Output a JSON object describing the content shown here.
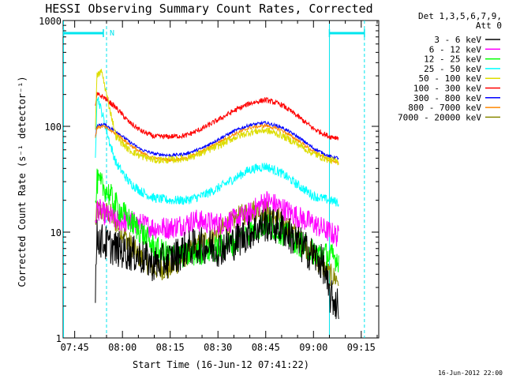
{
  "chart_data": {
    "type": "line",
    "title": "HESSI Observing Summary Count Rates, Corrected",
    "xlabel": "Start Time (16-Jun-12 07:41:22)",
    "ylabel": "Corrected Count Rate (s⁻¹ detector⁻¹)",
    "timestamp": "16-Jun-2012 22:00",
    "x_scale": "time",
    "x_range": [
      "07:41:22",
      "09:20:30"
    ],
    "x_ticks": [
      "07:45",
      "08:00",
      "08:15",
      "08:30",
      "08:45",
      "09:00",
      "09:15"
    ],
    "y_scale": "log",
    "y_range": [
      1,
      1000
    ],
    "y_ticks": [
      "1",
      "10",
      "100",
      "1000"
    ],
    "legend": {
      "position": "top-right",
      "header": [
        "Det 1,3,5,6,7,9,",
        "Att 0"
      ]
    },
    "annotations": {
      "flag_label": "N",
      "flag_bars": [
        {
          "from": "07:41:30",
          "to": "07:54:00"
        },
        {
          "from": "09:05:00",
          "to": "09:16:00"
        }
      ],
      "night_lines_solid": [
        "07:41:30",
        "09:05:00"
      ],
      "night_lines_dashed": [
        "07:55:00",
        "09:16:00"
      ]
    },
    "series": [
      {
        "name": "3 - 6 keV",
        "color": "#000000",
        "noise": 0.35,
        "x": [
          "07:51:30",
          "07:52:00",
          "07:54:00",
          "07:58:00",
          "08:05:00",
          "08:10:00",
          "08:15:00",
          "08:20:00",
          "08:25:00",
          "08:30:00",
          "08:35:00",
          "08:40:00",
          "08:45:00",
          "08:50:00",
          "08:55:00",
          "09:00:00",
          "09:03:00",
          "09:05:00",
          "09:08:00"
        ],
        "y": [
          3,
          9,
          8,
          7,
          6,
          5,
          5.5,
          7,
          7.5,
          7,
          8,
          10,
          12,
          11,
          8,
          6,
          5,
          2.5,
          2
        ]
      },
      {
        "name": "6 - 12 keV",
        "color": "#ff00ff",
        "noise": 0.22,
        "x": [
          "07:51:30",
          "07:52:00",
          "07:54:00",
          "07:58:00",
          "08:05:00",
          "08:10:00",
          "08:15:00",
          "08:20:00",
          "08:23:00",
          "08:25:00",
          "08:30:00",
          "08:35:00",
          "08:40:00",
          "08:45:00",
          "08:50:00",
          "08:55:00",
          "09:00:00",
          "09:05:00",
          "09:08:00"
        ],
        "y": [
          10,
          17,
          15,
          13,
          12,
          11,
          11,
          12,
          13,
          12.5,
          12,
          13,
          15,
          20,
          17,
          14,
          12,
          10,
          9
        ]
      },
      {
        "name": "12 - 25 keV",
        "color": "#00ff00",
        "noise": 0.25,
        "x": [
          "07:51:30",
          "07:52:00",
          "07:55:00",
          "07:58:00",
          "08:02:00",
          "08:06:00",
          "08:10:00",
          "08:15:00",
          "08:20:00",
          "08:25:00",
          "08:30:00",
          "08:35:00",
          "08:40:00",
          "08:45:00",
          "08:50:00",
          "08:55:00",
          "09:00:00",
          "09:05:00",
          "09:08:00"
        ],
        "y": [
          16,
          30,
          25,
          18,
          13,
          10,
          7,
          6,
          6,
          6.5,
          7,
          8,
          10,
          12,
          10,
          8,
          6.5,
          6,
          5.5
        ]
      },
      {
        "name": "25 - 50 keV",
        "color": "#00ffff",
        "noise": 0.09,
        "x": [
          "07:51:30",
          "07:52:00",
          "07:54:00",
          "07:56:00",
          "07:58:00",
          "08:02:00",
          "08:06:00",
          "08:10:00",
          "08:15:00",
          "08:20:00",
          "08:25:00",
          "08:30:00",
          "08:35:00",
          "08:40:00",
          "08:45:00",
          "08:50:00",
          "08:55:00",
          "09:00:00",
          "09:05:00",
          "09:08:00"
        ],
        "y": [
          50,
          200,
          120,
          70,
          45,
          30,
          24,
          21,
          20,
          20,
          22,
          26,
          32,
          39,
          42,
          36,
          28,
          22,
          20,
          19
        ]
      },
      {
        "name": "50 - 100 keV",
        "color": "#dddd00",
        "noise": 0.07,
        "x": [
          "07:51:30",
          "07:52:00",
          "07:53:30",
          "07:55:00",
          "07:58:00",
          "08:02:00",
          "08:06:00",
          "08:10:00",
          "08:15:00",
          "08:20:00",
          "08:25:00",
          "08:30:00",
          "08:35:00",
          "08:40:00",
          "08:45:00",
          "08:50:00",
          "08:55:00",
          "09:00:00",
          "09:05:00",
          "09:08:00"
        ],
        "y": [
          100,
          300,
          330,
          200,
          80,
          60,
          52,
          48,
          48,
          50,
          56,
          65,
          78,
          88,
          92,
          82,
          68,
          55,
          48,
          46
        ]
      },
      {
        "name": "100 - 300 keV",
        "color": "#ff0000",
        "noise": 0.05,
        "x": [
          "07:51:30",
          "07:52:00",
          "07:54:00",
          "07:58:00",
          "08:02:00",
          "08:06:00",
          "08:10:00",
          "08:15:00",
          "08:20:00",
          "08:25:00",
          "08:30:00",
          "08:35:00",
          "08:40:00",
          "08:45:00",
          "08:50:00",
          "08:55:00",
          "09:00:00",
          "09:05:00",
          "09:08:00"
        ],
        "y": [
          150,
          200,
          190,
          150,
          110,
          90,
          80,
          80,
          82,
          95,
          115,
          140,
          165,
          178,
          160,
          125,
          95,
          80,
          78
        ]
      },
      {
        "name": "300 - 800 keV",
        "color": "#0000ff",
        "noise": 0.03,
        "x": [
          "07:51:30",
          "07:52:00",
          "07:54:00",
          "07:58:00",
          "08:02:00",
          "08:06:00",
          "08:10:00",
          "08:15:00",
          "08:20:00",
          "08:25:00",
          "08:30:00",
          "08:35:00",
          "08:40:00",
          "08:45:00",
          "08:50:00",
          "08:55:00",
          "09:00:00",
          "09:05:00",
          "09:08:00"
        ],
        "y": [
          80,
          100,
          105,
          90,
          72,
          60,
          55,
          53,
          55,
          62,
          75,
          90,
          103,
          108,
          98,
          80,
          62,
          52,
          50
        ]
      },
      {
        "name": "800 - 7000 keV",
        "color": "#ff8800",
        "noise": 0.03,
        "x": [
          "07:51:30",
          "07:52:00",
          "07:54:00",
          "07:58:00",
          "08:02:00",
          "08:06:00",
          "08:10:00",
          "08:15:00",
          "08:20:00",
          "08:25:00",
          "08:30:00",
          "08:35:00",
          "08:40:00",
          "08:45:00",
          "08:50:00",
          "08:55:00",
          "09:00:00",
          "09:05:00",
          "09:08:00"
        ],
        "y": [
          78,
          98,
          100,
          85,
          68,
          56,
          50,
          48,
          50,
          58,
          70,
          84,
          97,
          102,
          92,
          74,
          58,
          48,
          46
        ]
      },
      {
        "name": "7000 - 20000 keV",
        "color": "#888800",
        "noise": 0.22,
        "x": [
          "07:51:30",
          "07:52:00",
          "07:56:00",
          "08:00:00",
          "08:05:00",
          "08:10:00",
          "08:15:00",
          "08:20:00",
          "08:25:00",
          "08:30:00",
          "08:35:00",
          "08:40:00",
          "08:45:00",
          "08:50:00",
          "08:55:00",
          "09:00:00",
          "09:05:00",
          "09:08:00"
        ],
        "y": [
          12,
          16,
          15,
          10,
          6,
          4.5,
          4.5,
          6,
          8,
          10,
          13,
          16,
          16,
          13,
          9,
          6,
          4,
          3.5
        ]
      }
    ]
  }
}
